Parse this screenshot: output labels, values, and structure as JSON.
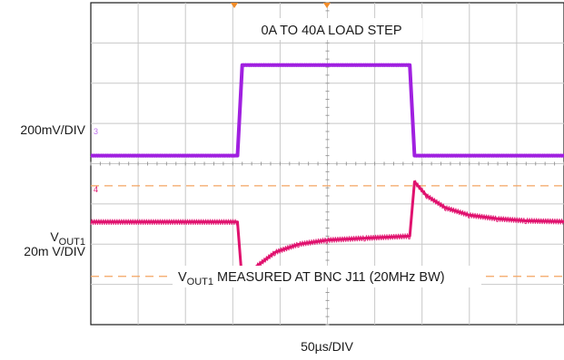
{
  "chart_data": {
    "type": "line",
    "title": "",
    "xlabel": "50µs/DIV",
    "x_divisions": 10,
    "y_divisions": 8,
    "xlim_us": [
      0,
      500
    ],
    "grid": true,
    "channel_labels": {
      "ch3": {
        "marker": "3",
        "scale": "200mV/DIV"
      },
      "ch4": {
        "marker": "4",
        "scale_main": "V",
        "scale_sub": "OUT1",
        "scale_line2": "20m V/DIV"
      }
    },
    "annotations": {
      "load_step": "0A TO 40A LOAD STEP",
      "measure_main": "V",
      "measure_sub": "OUT1",
      "measure_rest": " MEASURED AT BNC J11 (20MHz BW)"
    },
    "series": [
      {
        "name": "",
        "channel": "3",
        "color": "#a020e0",
        "unit": "divisions",
        "x": [
          0,
          155,
          160,
          337,
          342,
          500
        ],
        "values": [
          4.2,
          4.2,
          6.45,
          6.45,
          4.2,
          4.2
        ]
      },
      {
        "name": "",
        "channel": "4",
        "color": "#e0126e",
        "unit": "divisions",
        "x": [
          0,
          155,
          160,
          175,
          195,
          220,
          250,
          290,
          337,
          342,
          355,
          375,
          400,
          430,
          460,
          500
        ],
        "values": [
          2.55,
          2.55,
          1.05,
          1.45,
          1.8,
          2.0,
          2.1,
          2.15,
          2.2,
          3.55,
          3.2,
          2.9,
          2.72,
          2.63,
          2.58,
          2.56
        ]
      }
    ],
    "reference_lines": [
      {
        "color": "#f4a460",
        "style": "dashed",
        "y": 3.45
      },
      {
        "color": "#f4a460",
        "style": "dashed",
        "y": 1.2
      }
    ],
    "colors": {
      "ch3": "#a020e0",
      "ch4": "#e0126e",
      "ref": "#f4a460",
      "grid": "#c8c8c8"
    }
  }
}
